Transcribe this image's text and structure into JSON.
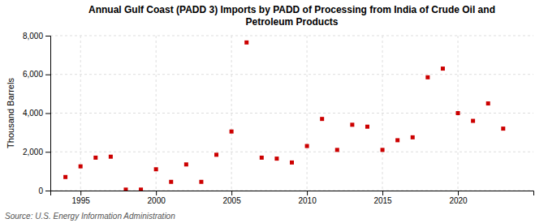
{
  "chart_data": {
    "type": "scatter",
    "title": "Annual Gulf Coast (PADD 3) Imports by PADD of Processing from India of Crude Oil and\nPetroleum Products",
    "ylabel": "Thousand Barrels",
    "annotations": [
      "Source: U.S. Energy Information Administration"
    ],
    "x": [
      1994,
      1995,
      1996,
      1997,
      1998,
      1999,
      2000,
      2001,
      2002,
      2003,
      2004,
      2005,
      2006,
      2007,
      2008,
      2009,
      2010,
      2011,
      2012,
      2013,
      2014,
      2015,
      2016,
      2017,
      2018,
      2019,
      2020,
      2021,
      2022,
      2023
    ],
    "values": [
      700,
      1250,
      1700,
      1750,
      50,
      50,
      1100,
      450,
      1350,
      450,
      1850,
      3050,
      7650,
      1700,
      1650,
      1450,
      2300,
      3700,
      2100,
      3400,
      3300,
      2100,
      2600,
      2750,
      5850,
      6300,
      4000,
      3600,
      4500,
      3200
    ],
    "color": "#cc0000",
    "marker": "square",
    "xlim": [
      1993,
      2025
    ],
    "ylim": [
      0,
      8000
    ],
    "xticks": [
      1995,
      2000,
      2005,
      2010,
      2015,
      2020
    ],
    "yticks": [
      0,
      {
        "value": 2000,
        "label": "2,000"
      },
      {
        "value": 4000,
        "label": "4,000"
      },
      {
        "value": 6000,
        "label": "6,000"
      },
      {
        "value": 8000,
        "label": "8,000"
      }
    ],
    "grid": true
  }
}
